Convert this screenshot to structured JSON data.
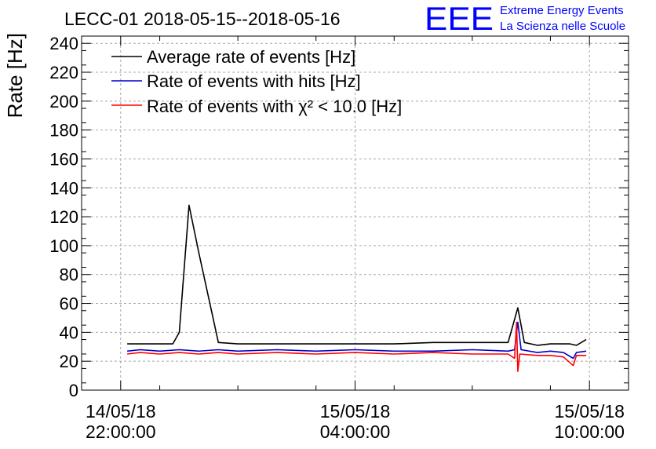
{
  "chart_data": {
    "type": "line",
    "title": "LECC-01 2018-05-15--2018-05-16",
    "ylabel": "Rate [Hz]",
    "ylim": [
      0,
      245
    ],
    "yticks": [
      0,
      20,
      40,
      60,
      80,
      100,
      120,
      140,
      160,
      180,
      200,
      220,
      240
    ],
    "xlim": [
      "2018-05-14T21:00",
      "2018-05-15T11:00"
    ],
    "xticks": [
      {
        "t": "2018-05-14T22:00",
        "date": "14/05/18",
        "time": "22:00:00"
      },
      {
        "t": "2018-05-15T04:00",
        "date": "15/05/18",
        "time": "04:00:00"
      },
      {
        "t": "2018-05-15T10:00",
        "date": "15/05/18",
        "time": "10:00:00"
      }
    ],
    "grid": true,
    "legend_position": "top-left",
    "series": [
      {
        "name": "Average rate of events [Hz]",
        "color": "#000000",
        "points": [
          [
            "2018-05-14T22:10",
            32
          ],
          [
            "2018-05-14T22:30",
            32
          ],
          [
            "2018-05-14T23:00",
            32
          ],
          [
            "2018-05-14T23:20",
            32
          ],
          [
            "2018-05-14T23:30",
            40
          ],
          [
            "2018-05-14T23:45",
            128
          ],
          [
            "2018-05-15T00:00",
            95
          ],
          [
            "2018-05-15T00:30",
            33
          ],
          [
            "2018-05-15T01:00",
            32
          ],
          [
            "2018-05-15T02:00",
            32
          ],
          [
            "2018-05-15T03:00",
            32
          ],
          [
            "2018-05-15T04:00",
            32
          ],
          [
            "2018-05-15T05:00",
            32
          ],
          [
            "2018-05-15T06:00",
            33
          ],
          [
            "2018-05-15T07:00",
            33
          ],
          [
            "2018-05-15T07:55",
            33
          ],
          [
            "2018-05-15T08:10",
            57
          ],
          [
            "2018-05-15T08:20",
            33
          ],
          [
            "2018-05-15T08:40",
            31
          ],
          [
            "2018-05-15T09:00",
            32
          ],
          [
            "2018-05-15T09:30",
            32
          ],
          [
            "2018-05-15T09:40",
            31
          ],
          [
            "2018-05-15T09:55",
            35
          ]
        ]
      },
      {
        "name": "Rate of events with hits [Hz]",
        "color": "#0000cc",
        "points": [
          [
            "2018-05-14T22:10",
            27
          ],
          [
            "2018-05-14T22:30",
            28
          ],
          [
            "2018-05-14T23:00",
            27
          ],
          [
            "2018-05-14T23:30",
            28
          ],
          [
            "2018-05-15T00:00",
            27
          ],
          [
            "2018-05-15T00:30",
            28
          ],
          [
            "2018-05-15T01:00",
            27
          ],
          [
            "2018-05-15T02:00",
            28
          ],
          [
            "2018-05-15T03:00",
            27
          ],
          [
            "2018-05-15T04:00",
            28
          ],
          [
            "2018-05-15T05:00",
            27
          ],
          [
            "2018-05-15T06:00",
            27
          ],
          [
            "2018-05-15T07:00",
            28
          ],
          [
            "2018-05-15T07:55",
            27
          ],
          [
            "2018-05-15T08:05",
            28
          ],
          [
            "2018-05-15T08:10",
            47
          ],
          [
            "2018-05-15T08:15",
            28
          ],
          [
            "2018-05-15T08:40",
            26
          ],
          [
            "2018-05-15T09:00",
            27
          ],
          [
            "2018-05-15T09:20",
            26
          ],
          [
            "2018-05-15T09:35",
            22
          ],
          [
            "2018-05-15T09:40",
            26
          ],
          [
            "2018-05-15T09:55",
            27
          ]
        ]
      },
      {
        "name": "Rate of events with χ² < 10.0 [Hz]",
        "color": "#ff0000",
        "points": [
          [
            "2018-05-14T22:10",
            25
          ],
          [
            "2018-05-14T22:30",
            26
          ],
          [
            "2018-05-14T23:00",
            25
          ],
          [
            "2018-05-14T23:30",
            26
          ],
          [
            "2018-05-15T00:00",
            25
          ],
          [
            "2018-05-15T00:30",
            26
          ],
          [
            "2018-05-15T01:00",
            25
          ],
          [
            "2018-05-15T02:00",
            26
          ],
          [
            "2018-05-15T03:00",
            25
          ],
          [
            "2018-05-15T04:00",
            26
          ],
          [
            "2018-05-15T05:00",
            25
          ],
          [
            "2018-05-15T06:00",
            26
          ],
          [
            "2018-05-15T07:00",
            25
          ],
          [
            "2018-05-15T07:55",
            25
          ],
          [
            "2018-05-15T08:05",
            22
          ],
          [
            "2018-05-15T08:08",
            47
          ],
          [
            "2018-05-15T08:10",
            13
          ],
          [
            "2018-05-15T08:13",
            25
          ],
          [
            "2018-05-15T08:40",
            24
          ],
          [
            "2018-05-15T09:00",
            24
          ],
          [
            "2018-05-15T09:20",
            23
          ],
          [
            "2018-05-15T09:35",
            17
          ],
          [
            "2018-05-15T09:40",
            24
          ],
          [
            "2018-05-15T09:55",
            24
          ]
        ]
      }
    ]
  },
  "logo": {
    "mark": "EEE",
    "line1": "Extreme Energy Events",
    "line2": "La Scienza nelle Scuole",
    "color": "#0000ff"
  }
}
